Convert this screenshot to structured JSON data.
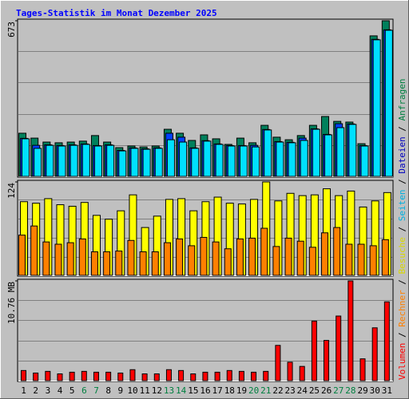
{
  "chart_data": [
    {
      "type": "bar",
      "title": "Tages-Statistik im Monat Dezember 2025",
      "ylim": [
        0,
        673
      ],
      "yticks": [
        673
      ],
      "series": [
        {
          "name": "Anfragen",
          "color": "#00805c",
          "label_color": "#008040",
          "values": [
            189,
            168,
            151,
            148,
            151,
            155,
            179,
            151,
            127,
            134,
            130,
            134,
            206,
            189,
            158,
            182,
            165,
            141,
            168,
            148,
            223,
            172,
            161,
            179,
            223,
            261,
            240,
            237,
            144,
            608,
            673
          ]
        },
        {
          "name": "Dateien",
          "color": "#0040ff",
          "label_color": "#0000c0",
          "values": [
            167,
            137,
            139,
            136,
            139,
            143,
            136,
            139,
            115,
            126,
            122,
            126,
            189,
            172,
            126,
            157,
            143,
            136,
            136,
            137,
            205,
            153,
            150,
            168,
            208,
            184,
            230,
            229,
            136,
            593,
            634
          ]
        },
        {
          "name": "Seiten",
          "color": "#00e0ff",
          "label_color": "#00b0e0",
          "values": [
            165,
            124,
            137,
            134,
            137,
            141,
            134,
            137,
            113,
            124,
            120,
            124,
            161,
            151,
            124,
            155,
            141,
            134,
            134,
            130,
            203,
            151,
            148,
            158,
            206,
            182,
            213,
            227,
            134,
            591,
            632
          ]
        }
      ]
    },
    {
      "type": "bar",
      "ylim": [
        0,
        124
      ],
      "yticks": [
        124
      ],
      "series": [
        {
          "name": "Besuche",
          "color": "#ffff00",
          "label_color": "#d8d800",
          "values": [
            98,
            96,
            102,
            94,
            92,
            97,
            80,
            75,
            86,
            107,
            64,
            79,
            101,
            102,
            86,
            98,
            104,
            96,
            95,
            101,
            124,
            99,
            109,
            106,
            107,
            115,
            106,
            112,
            91,
            99,
            110
          ]
        },
        {
          "name": "Rechner",
          "color": "#ff8000",
          "label_color": "#ff8000",
          "values": [
            54,
            66,
            45,
            42,
            44,
            49,
            32,
            32,
            33,
            47,
            32,
            32,
            44,
            49,
            40,
            51,
            45,
            36,
            49,
            50,
            63,
            39,
            50,
            46,
            38,
            57,
            64,
            42,
            42,
            40,
            48
          ]
        }
      ]
    },
    {
      "type": "bar",
      "ylim": [
        0,
        10.76
      ],
      "yticks": [
        {
          "value": 10.76,
          "label": "10.76 MB"
        }
      ],
      "categories": [
        "1",
        "2",
        "3",
        "4",
        "5",
        "6",
        "7",
        "8",
        "9",
        "10",
        "11",
        "12",
        "13",
        "14",
        "15",
        "16",
        "17",
        "18",
        "19",
        "20",
        "21",
        "22",
        "23",
        "24",
        "25",
        "26",
        "27",
        "28",
        "29",
        "30",
        "31"
      ],
      "highlighted": [
        5,
        6,
        12,
        13,
        19,
        20,
        26,
        27
      ],
      "highlight_color": "#008040",
      "series": [
        {
          "name": "Volumen",
          "color": "#ff0000",
          "label_color": "#ff0000",
          "values": [
            1.17,
            0.9,
            1.08,
            0.81,
            0.99,
            1.08,
            0.99,
            0.99,
            0.9,
            1.26,
            0.81,
            0.81,
            1.26,
            1.17,
            0.81,
            0.99,
            0.99,
            1.17,
            1.08,
            0.99,
            1.08,
            3.86,
            2.06,
            1.61,
            6.46,
            4.39,
            7.0,
            10.76,
            2.42,
            5.74,
            8.52
          ]
        }
      ]
    }
  ]
}
